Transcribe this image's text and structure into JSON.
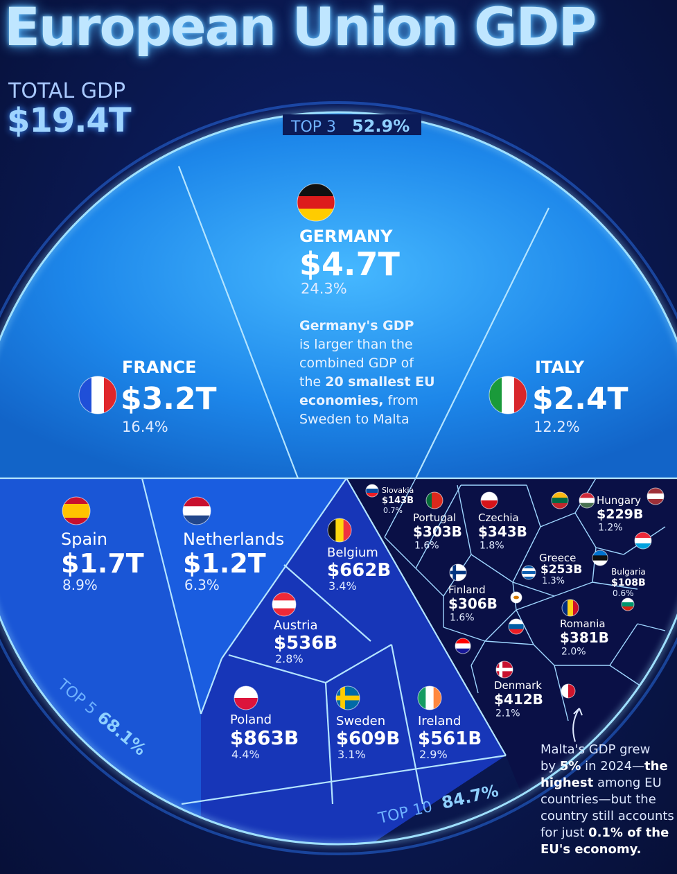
{
  "title": "European Union GDP",
  "total": {
    "label": "TOTAL GDP",
    "value": "$19.4T"
  },
  "arcs": {
    "top3": {
      "label": "TOP 3",
      "value": "52.9%"
    },
    "top5": {
      "label": "TOP 5",
      "value": "68.1%"
    },
    "top10": {
      "label": "TOP 10",
      "value": "84.7%"
    }
  },
  "germany_note": [
    [
      [
        "Germany's GDP",
        true
      ]
    ],
    [
      [
        "is larger than the",
        false
      ]
    ],
    [
      [
        "combined GDP of",
        false
      ]
    ],
    [
      [
        "the ",
        false
      ],
      [
        "20 smallest EU",
        true
      ]
    ],
    [
      [
        "economies,",
        true
      ],
      [
        " from",
        false
      ]
    ],
    [
      [
        "Sweden to Malta",
        false
      ]
    ]
  ],
  "malta_note": [
    [
      "Malta's GDP grew",
      false
    ],
    [
      "by ",
      false
    ],
    [
      "5%",
      true
    ],
    [
      " in 2024—",
      false
    ],
    [
      "the",
      true
    ],
    [
      "highest",
      true
    ],
    [
      " among EU",
      false
    ],
    [
      "countries—but the",
      false
    ],
    [
      "country still accounts",
      false
    ],
    [
      "for just ",
      false
    ],
    [
      "0.1% of the",
      true
    ],
    [
      "EU's economy.",
      true
    ]
  ],
  "colors": {
    "tier1": "#1f8ef0",
    "tier2": "#1a56d6",
    "tier3": "#1736b8",
    "tier4": "#0a1046",
    "line": "#b4e4ff",
    "glow": "#3da2ff"
  },
  "chart_data": {
    "type": "voronoi-treemap",
    "title": "European Union GDP",
    "total": "$19.4T",
    "countries": [
      {
        "name": "GERMANY",
        "value": "$4.7T",
        "share": "24.3%",
        "flag": "germany-flag"
      },
      {
        "name": "FRANCE",
        "value": "$3.2T",
        "share": "16.4%",
        "flag": "france-flag"
      },
      {
        "name": "ITALY",
        "value": "$2.4T",
        "share": "12.2%",
        "flag": "italy-flag"
      },
      {
        "name": "Spain",
        "value": "$1.7T",
        "share": "8.9%",
        "flag": "spain-flag"
      },
      {
        "name": "Netherlands",
        "value": "$1.2T",
        "share": "6.3%",
        "flag": "netherlands-flag"
      },
      {
        "name": "Poland",
        "value": "$863B",
        "share": "4.4%",
        "flag": "poland-flag"
      },
      {
        "name": "Belgium",
        "value": "$662B",
        "share": "3.4%",
        "flag": "belgium-flag"
      },
      {
        "name": "Sweden",
        "value": "$609B",
        "share": "3.1%",
        "flag": "sweden-flag"
      },
      {
        "name": "Ireland",
        "value": "$561B",
        "share": "2.9%",
        "flag": "ireland-flag"
      },
      {
        "name": "Austria",
        "value": "$536B",
        "share": "2.8%",
        "flag": "austria-flag"
      },
      {
        "name": "Denmark",
        "value": "$412B",
        "share": "2.1%",
        "flag": "denmark-flag"
      },
      {
        "name": "Romania",
        "value": "$381B",
        "share": "2.0%",
        "flag": "romania-flag"
      },
      {
        "name": "Czechia",
        "value": "$343B",
        "share": "1.8%",
        "flag": "czechia-flag"
      },
      {
        "name": "Finland",
        "value": "$306B",
        "share": "1.6%",
        "flag": "finland-flag"
      },
      {
        "name": "Portugal",
        "value": "$303B",
        "share": "1.6%",
        "flag": "portugal-flag"
      },
      {
        "name": "Greece",
        "value": "$253B",
        "share": "1.3%",
        "flag": "greece-flag"
      },
      {
        "name": "Hungary",
        "value": "$229B",
        "share": "1.2%",
        "flag": "hungary-flag"
      },
      {
        "name": "Slovakia",
        "value": "$143B",
        "share": "0.7%",
        "flag": "slovakia-flag"
      },
      {
        "name": "Bulgaria",
        "value": "$108B",
        "share": "0.6%",
        "flag": "bulgaria-flag"
      }
    ],
    "unlabeled_flags": [
      "lithuania-flag",
      "latvia-flag",
      "luxembourg-flag",
      "estonia-flag",
      "slovenia-flag",
      "croatia-flag",
      "cyprus-flag",
      "malta-flag"
    ]
  }
}
